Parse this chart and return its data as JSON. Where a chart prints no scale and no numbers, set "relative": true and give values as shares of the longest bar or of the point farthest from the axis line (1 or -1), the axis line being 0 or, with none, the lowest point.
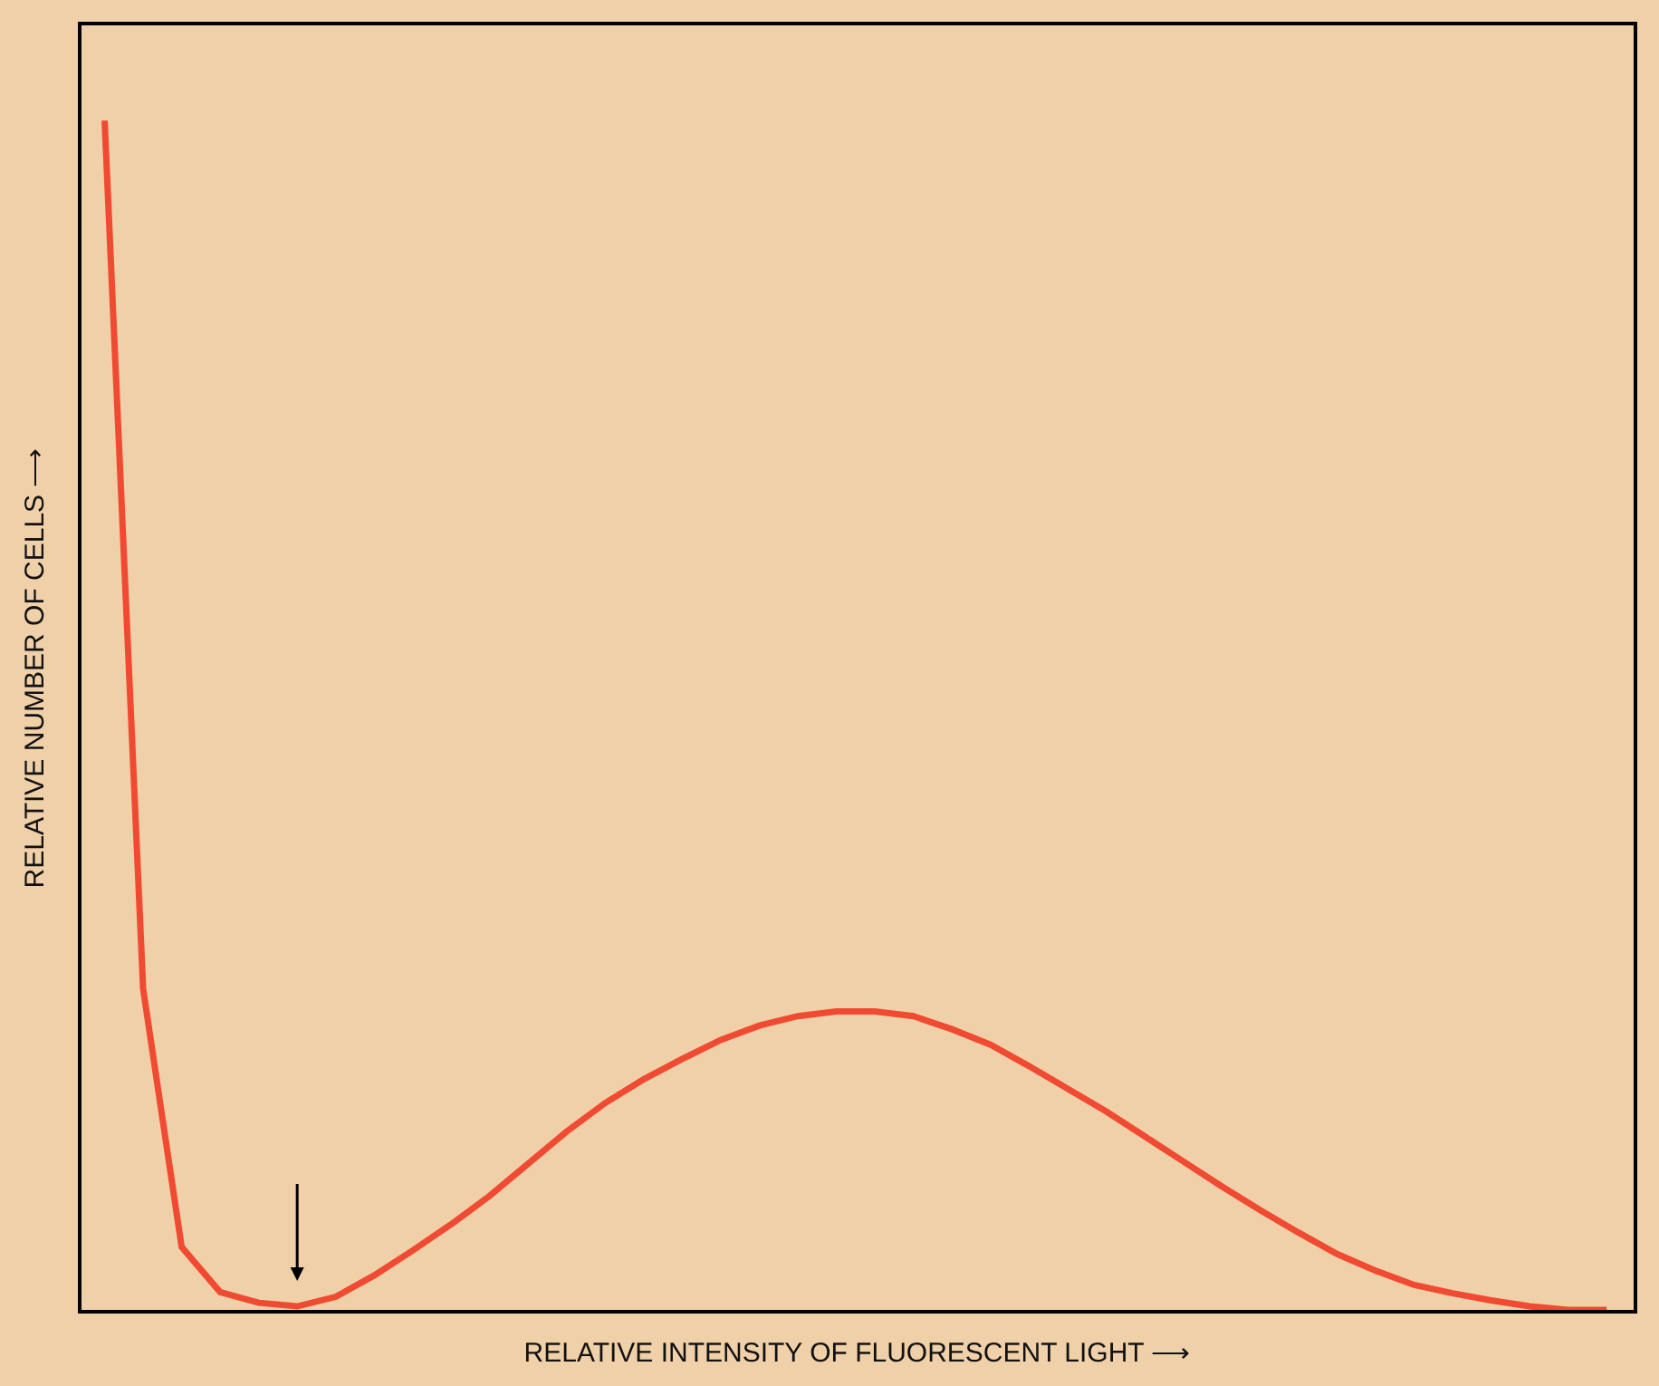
{
  "chart_data": {
    "type": "line",
    "relative": true,
    "xlabel": "RELATIVE INTENSITY OF FLUORESCENT LIGHT ⟶",
    "ylabel": "RELATIVE NUMBER OF CELLS ⟶",
    "categories": [
      null,
      null,
      null,
      null,
      null,
      null,
      null,
      null,
      null,
      null,
      null,
      null,
      null,
      null,
      null,
      null,
      null,
      null,
      null,
      null,
      null,
      null,
      null,
      null,
      null,
      null,
      null,
      null,
      null,
      null,
      null,
      null,
      null,
      null,
      null,
      null,
      null,
      null,
      null,
      null
    ],
    "series": [
      {
        "color": "#f04a32",
        "values": [
          1.0,
          0.27,
          0.053,
          0.015,
          0.006,
          0.003,
          0.011,
          0.029,
          0.05,
          0.072,
          0.096,
          0.123,
          0.15,
          0.174,
          0.194,
          0.211,
          0.227,
          0.239,
          0.247,
          0.251,
          0.251,
          0.247,
          0.236,
          0.223,
          0.205,
          0.186,
          0.167,
          0.146,
          0.125,
          0.104,
          0.084,
          0.065,
          0.047,
          0.033,
          0.021,
          0.014,
          0.008,
          0.003,
          0,
          0
        ]
      }
    ],
    "grid": false,
    "legend": false,
    "marker": "none",
    "line_style": "solid"
  }
}
